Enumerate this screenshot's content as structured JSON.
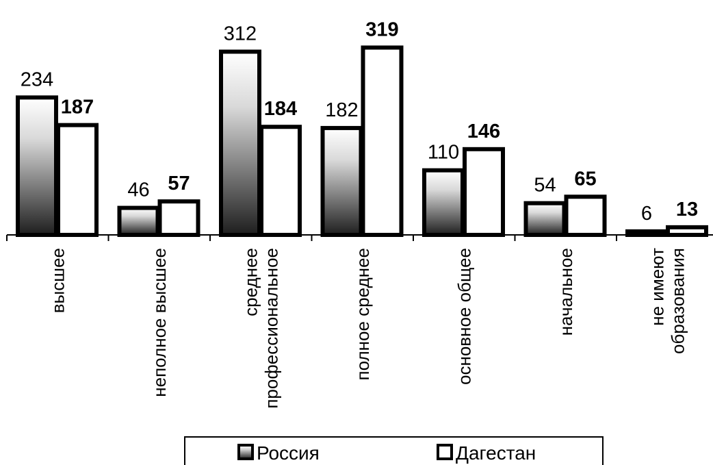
{
  "chart_data": {
    "type": "bar",
    "categories": [
      [
        "высшее"
      ],
      [
        "неполное высшее"
      ],
      [
        "среднее",
        "профессиональное"
      ],
      [
        "полное среднее"
      ],
      [
        "основное общее"
      ],
      [
        "начальное"
      ],
      [
        "не имеют",
        "образования"
      ]
    ],
    "series": [
      {
        "name": "Россия",
        "values": [
          234,
          46,
          312,
          182,
          110,
          54,
          6
        ],
        "style": "gradient",
        "label_weight": "normal"
      },
      {
        "name": "Дагестан",
        "values": [
          187,
          57,
          184,
          319,
          146,
          65,
          13
        ],
        "style": "white",
        "label_weight": "bold"
      }
    ],
    "ylim": [
      0,
      330
    ],
    "legend_position": "bottom",
    "grid": false,
    "colors": {
      "bar_stroke": "#000000",
      "gradient_top": "#ffffff",
      "gradient_bottom": "#1e1e1e"
    }
  }
}
